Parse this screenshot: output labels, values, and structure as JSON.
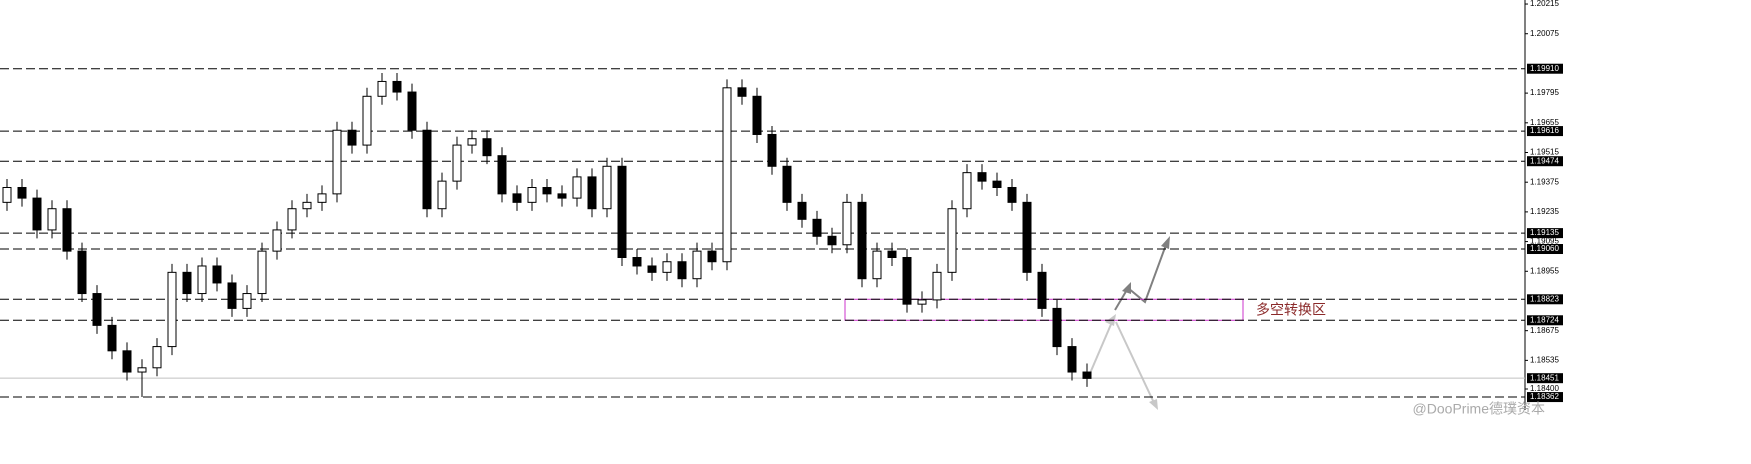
{
  "chart_data": {
    "type": "candlestick",
    "ylim": [
      1.18301,
      1.20234
    ],
    "yticks": [
      1.20215,
      1.20075,
      1.19795,
      1.19655,
      1.19515,
      1.19375,
      1.19235,
      1.19095,
      1.18955,
      1.18675,
      1.18535,
      {
        "value": 1.184,
        "label": "1.18400"
      }
    ],
    "open": [
      1.1928,
      1.1935,
      1.193,
      1.1915,
      1.1925,
      1.1905,
      1.1885,
      1.187,
      1.1858,
      1.1848,
      1.185,
      1.186,
      1.1895,
      1.1885,
      1.1898,
      1.189,
      1.1878,
      1.1885,
      1.1905,
      1.1915,
      1.1925,
      1.1928,
      1.1932,
      1.1962,
      1.1955,
      1.1978,
      1.1985,
      1.198,
      1.1962,
      1.1925,
      1.1938,
      1.1955,
      1.1958,
      1.195,
      1.1932,
      1.1928,
      1.1935,
      1.1932,
      1.193,
      1.194,
      1.1925,
      1.1945,
      1.1902,
      1.1898,
      1.1895,
      1.19,
      1.1892,
      1.1905,
      1.19,
      1.1982,
      1.1978,
      1.196,
      1.1945,
      1.1928,
      1.192,
      1.1912,
      1.1908,
      1.1928,
      1.1892,
      1.1905,
      1.1902,
      1.188,
      1.1882,
      1.1895,
      1.1925,
      1.1942,
      1.1938,
      1.1935,
      1.1928,
      1.1895,
      1.1878,
      1.186,
      1.1848
    ],
    "high": [
      1.1939,
      1.1939,
      1.1934,
      1.1929,
      1.1929,
      1.1909,
      1.1889,
      1.1874,
      1.1862,
      1.1854,
      1.1864,
      1.1899,
      1.1899,
      1.1902,
      1.1902,
      1.1894,
      1.1889,
      1.1909,
      1.1919,
      1.1929,
      1.1932,
      1.1936,
      1.1966,
      1.1966,
      1.1982,
      1.1989,
      1.1989,
      1.1984,
      1.1966,
      1.1942,
      1.1959,
      1.1962,
      1.1962,
      1.1954,
      1.1936,
      1.1939,
      1.1939,
      1.1936,
      1.1944,
      1.1944,
      1.1949,
      1.1949,
      1.1906,
      1.1902,
      1.1904,
      1.1904,
      1.1909,
      1.1909,
      1.1986,
      1.1986,
      1.1982,
      1.1964,
      1.1949,
      1.1932,
      1.1924,
      1.1916,
      1.1932,
      1.1932,
      1.1909,
      1.1909,
      1.1906,
      1.1886,
      1.1899,
      1.1929,
      1.1946,
      1.1946,
      1.1942,
      1.1939,
      1.1932,
      1.1899,
      1.1882,
      1.1864,
      1.1852
    ],
    "low": [
      1.1924,
      1.1926,
      1.1911,
      1.1911,
      1.1901,
      1.1881,
      1.1866,
      1.1854,
      1.1844,
      1.18362,
      1.1846,
      1.1856,
      1.1881,
      1.1881,
      1.1886,
      1.1874,
      1.1874,
      1.1881,
      1.1901,
      1.1911,
      1.1921,
      1.1924,
      1.1928,
      1.1951,
      1.1951,
      1.1974,
      1.1976,
      1.1958,
      1.1921,
      1.1921,
      1.1934,
      1.1951,
      1.1946,
      1.1928,
      1.1924,
      1.1924,
      1.1928,
      1.1926,
      1.1926,
      1.1921,
      1.1921,
      1.1898,
      1.1894,
      1.1891,
      1.1891,
      1.1888,
      1.1888,
      1.1896,
      1.1896,
      1.1974,
      1.1956,
      1.1941,
      1.1924,
      1.1916,
      1.1908,
      1.1904,
      1.1904,
      1.1888,
      1.1888,
      1.1898,
      1.1876,
      1.1876,
      1.1878,
      1.1891,
      1.1921,
      1.1934,
      1.1931,
      1.1924,
      1.1891,
      1.1874,
      1.1856,
      1.1844,
      1.1841
    ],
    "close": [
      1.1935,
      1.193,
      1.1915,
      1.1925,
      1.1905,
      1.1885,
      1.187,
      1.1858,
      1.1848,
      1.185,
      1.186,
      1.1895,
      1.1885,
      1.1898,
      1.189,
      1.1878,
      1.1885,
      1.1905,
      1.1915,
      1.1925,
      1.1928,
      1.1932,
      1.1962,
      1.1955,
      1.1978,
      1.1985,
      1.198,
      1.1962,
      1.1925,
      1.1938,
      1.1955,
      1.1958,
      1.195,
      1.1932,
      1.1928,
      1.1935,
      1.1932,
      1.193,
      1.194,
      1.1925,
      1.1945,
      1.1902,
      1.1898,
      1.1895,
      1.19,
      1.1892,
      1.1905,
      1.19,
      1.1982,
      1.1978,
      1.196,
      1.1945,
      1.1928,
      1.192,
      1.1912,
      1.1908,
      1.1928,
      1.1892,
      1.1905,
      1.1902,
      1.188,
      1.1882,
      1.1895,
      1.1925,
      1.1942,
      1.1938,
      1.1935,
      1.1928,
      1.1895,
      1.1878,
      1.186,
      1.1848,
      1.1845
    ],
    "levels": [
      {
        "value": 1.1991,
        "label": "1.19910"
      },
      1.19616,
      1.19474,
      1.19135,
      {
        "value": 1.1906,
        "label": "1.19060"
      },
      1.18823,
      1.18724,
      1.18362
    ],
    "current_price": 1.18451,
    "zone_label": "多空转换区",
    "watermark": "@DooPrime德璞资本",
    "candle_color": "#000000",
    "level_color": "#000000",
    "zone_color": "#cc33cc",
    "zone_label_color": "#8b2a2a"
  }
}
